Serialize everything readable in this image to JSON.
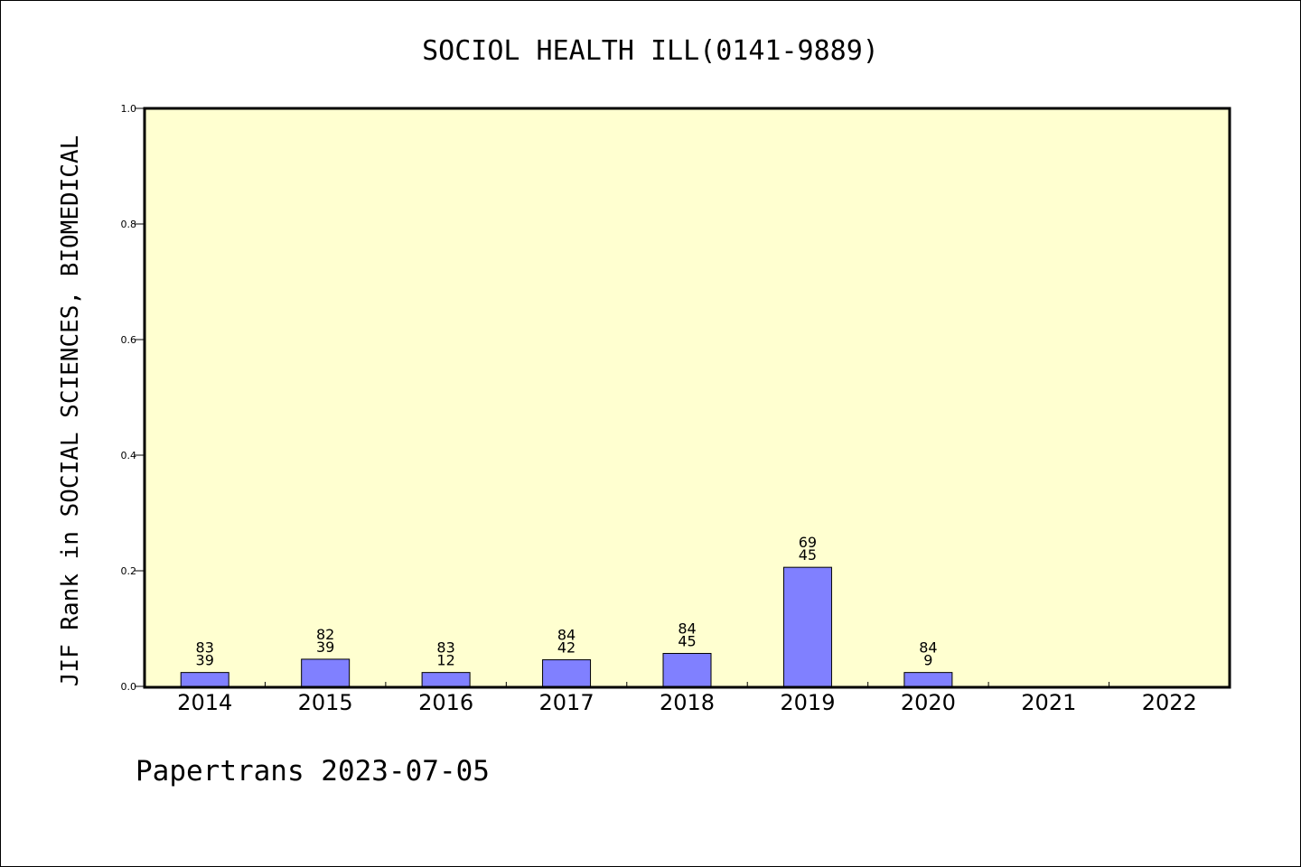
{
  "chart_data": {
    "type": "bar",
    "title": "SOCIOL HEALTH ILL(0141-9889)",
    "ylabel": "JIF Rank in SOCIAL SCIENCES, BIOMEDICAL",
    "xlabel": "",
    "ylim": [
      0,
      1.0
    ],
    "yticks": [
      "0.0",
      "0.2",
      "0.4",
      "0.6",
      "0.8",
      "1.0"
    ],
    "grid": false,
    "categories": [
      "2014",
      "2015",
      "2016",
      "2017",
      "2018",
      "2019",
      "2020",
      "2021",
      "2022"
    ],
    "values": [
      0.024,
      0.047,
      0.024,
      0.046,
      0.057,
      0.206,
      0.024,
      null,
      null
    ],
    "label_top": [
      "83",
      "82",
      "83",
      "84",
      "84",
      "69",
      "84",
      "",
      ""
    ],
    "label_bottom": [
      "39",
      "39",
      "12",
      "42",
      "45",
      "45",
      "9",
      "",
      ""
    ],
    "colors": {
      "bar": "#8080ff",
      "plot_bg": "#ffffd0",
      "axis": "#000000"
    }
  },
  "footer": "Papertrans 2023-07-05"
}
